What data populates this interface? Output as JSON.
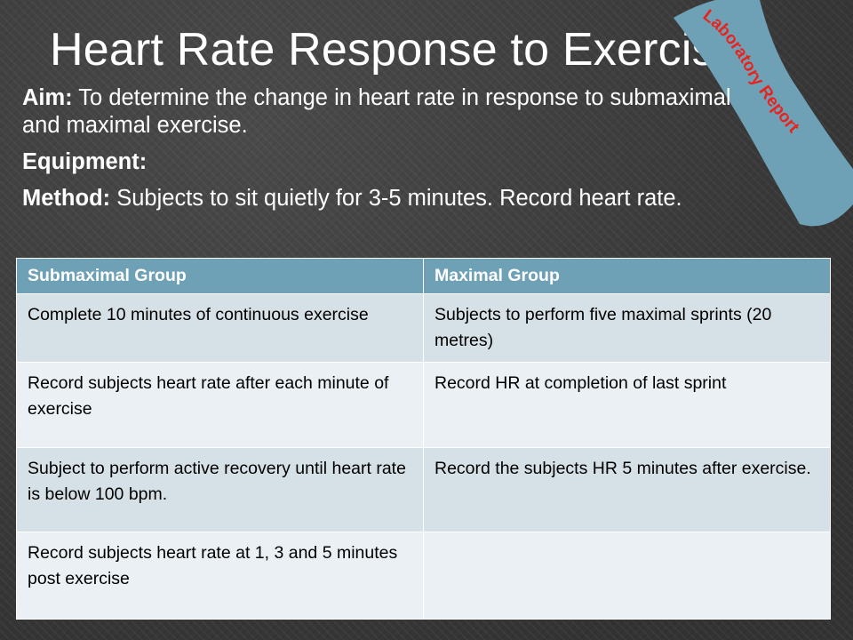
{
  "title": "Heart Rate Response to Exercise",
  "ribbon": {
    "label": "Laboratory Report",
    "color": "#6fa1b6",
    "text_color": "#e8221c"
  },
  "aim": {
    "label": "Aim:",
    "text": " To determine the change in heart rate in response to submaximal and maximal exercise."
  },
  "equipment": {
    "label": "Equipment:",
    "text": ""
  },
  "method": {
    "label": "Method:",
    "text": " Subjects to sit quietly for 3-5 minutes. Record heart rate."
  },
  "table": {
    "header_color": "#6fa1b6",
    "headers": [
      "Submaximal Group",
      "Maximal Group"
    ],
    "rows": [
      [
        "Complete 10 minutes of continuous exercise",
        "Subjects to perform five maximal sprints (20 metres)"
      ],
      [
        "Record subjects heart rate after each minute of exercise",
        "Record HR at completion of last sprint"
      ],
      [
        "Subject to perform active recovery until heart rate is below 100 bpm.",
        "Record the subjects HR 5 minutes after exercise."
      ],
      [
        "Record subjects heart rate at 1, 3 and 5 minutes post exercise",
        ""
      ]
    ]
  }
}
